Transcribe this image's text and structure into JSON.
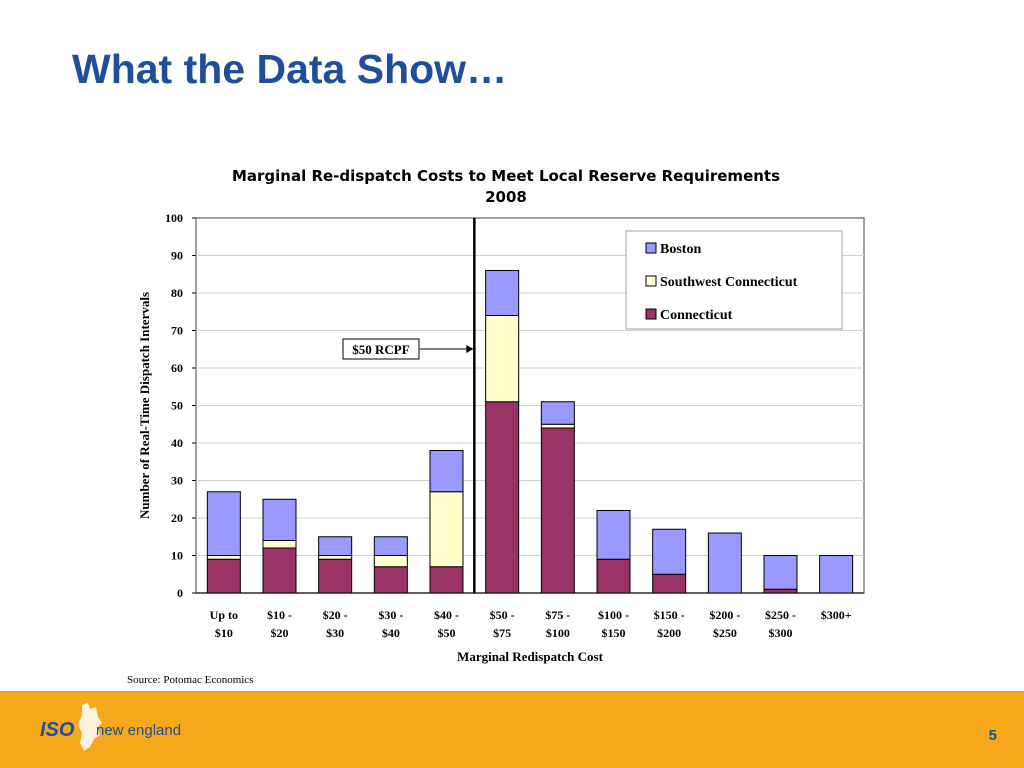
{
  "slide": {
    "title": "What the Data Show…",
    "source": "Source: Potomac Economics",
    "page_number": "5"
  },
  "logo": {
    "iso": "ISO",
    "name": "new england"
  },
  "colors": {
    "title": "#1f4e9c",
    "boston": "#9999ff",
    "southwest_connecticut": "#ffffcc",
    "connecticut": "#993366",
    "footer": "#f5a819"
  },
  "chart_data": {
    "type": "bar",
    "stacked": true,
    "title": "Marginal Re-dispatch Costs to Meet Local Reserve Requirements",
    "subtitle": "2008",
    "xlabel": "Marginal Redispatch Cost",
    "ylabel": "Number of Real-Time Dispatch Intervals",
    "ylim": [
      0,
      100
    ],
    "yticks": [
      0,
      10,
      20,
      30,
      40,
      50,
      60,
      70,
      80,
      90,
      100
    ],
    "grid": true,
    "legend_position": "top-right",
    "categories": [
      [
        "Up to",
        "$10"
      ],
      [
        "$10 -",
        "$20"
      ],
      [
        "$20 -",
        "$30"
      ],
      [
        "$30 -",
        "$40"
      ],
      [
        "$40 -",
        "$50"
      ],
      [
        "$50 -",
        "$75"
      ],
      [
        "$75 -",
        "$100"
      ],
      [
        "$100 -",
        "$150"
      ],
      [
        "$150 -",
        "$200"
      ],
      [
        "$200 -",
        "$250"
      ],
      [
        "$250 -",
        "$300"
      ],
      [
        "$300+",
        ""
      ]
    ],
    "series": [
      {
        "name": "Connecticut",
        "color": "#993366",
        "values": [
          9,
          12,
          9,
          7,
          7,
          51,
          44,
          9,
          5,
          0,
          1,
          0
        ]
      },
      {
        "name": "Southwest Connecticut",
        "color": "#ffffcc",
        "values": [
          1,
          2,
          1,
          3,
          20,
          23,
          1,
          0,
          0,
          0,
          0,
          0
        ]
      },
      {
        "name": "Boston",
        "color": "#9999ff",
        "values": [
          17,
          11,
          5,
          5,
          11,
          12,
          6,
          13,
          12,
          16,
          9,
          10
        ]
      }
    ],
    "legend_order": [
      "Boston",
      "Southwest Connecticut",
      "Connecticut"
    ],
    "annotation": {
      "text": "$50 RCPF",
      "divider_after_category": 4
    }
  }
}
